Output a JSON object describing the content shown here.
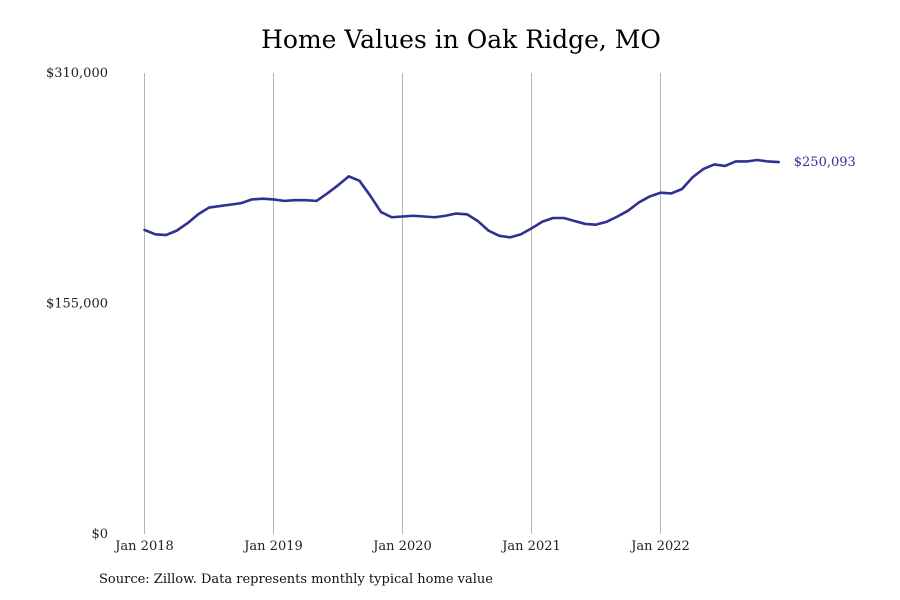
{
  "chart_data": {
    "type": "line",
    "title": "Home Values in Oak Ridge, MO",
    "source_note": "Source: Zillow. Data represents monthly typical home value",
    "xlabel": "",
    "ylabel": "",
    "x_start": "2018-01",
    "x_ticks": [
      "Jan 2018",
      "Jan 2019",
      "Jan 2020",
      "Jan 2021",
      "Jan 2022"
    ],
    "y_ticks": [
      "$0",
      "$155,000",
      "$310,000"
    ],
    "ylim": [
      0,
      310000
    ],
    "grid": "vertical at x ticks",
    "legend": "none",
    "end_label": "$250,093",
    "colors": {
      "line": "#2e3192",
      "grid": "#b3b3b3"
    },
    "series": [
      {
        "x": [
          "2018-01",
          "2018-02",
          "2018-03",
          "2018-04",
          "2018-05",
          "2018-06",
          "2018-07",
          "2018-08",
          "2018-09",
          "2018-10",
          "2018-11",
          "2018-12",
          "2019-01",
          "2019-02",
          "2019-03",
          "2019-04",
          "2019-05",
          "2019-06",
          "2019-07",
          "2019-08",
          "2019-09",
          "2019-10",
          "2019-11",
          "2019-12",
          "2020-01",
          "2020-02",
          "2020-03",
          "2020-04",
          "2020-05",
          "2020-06",
          "2020-07",
          "2020-08",
          "2020-09",
          "2020-10",
          "2020-11",
          "2020-12",
          "2021-01",
          "2021-02",
          "2021-03",
          "2021-04",
          "2021-05",
          "2021-06",
          "2021-07",
          "2021-08",
          "2021-09",
          "2021-10",
          "2021-11",
          "2021-12",
          "2022-01",
          "2022-02",
          "2022-03",
          "2022-04",
          "2022-05",
          "2022-06",
          "2022-07",
          "2022-08",
          "2022-09",
          "2022-10",
          "2022-11",
          "2022-12"
        ],
        "values": [
          204500,
          201500,
          201000,
          204000,
          209000,
          215000,
          219500,
          220500,
          221500,
          222500,
          225000,
          225500,
          225000,
          224000,
          224500,
          224500,
          224000,
          229000,
          234500,
          240500,
          237500,
          227500,
          216500,
          213000,
          213500,
          214000,
          213500,
          213000,
          214000,
          215500,
          215000,
          210500,
          204000,
          200500,
          199500,
          201500,
          205500,
          210000,
          212500,
          212500,
          210500,
          208500,
          208000,
          210000,
          213500,
          217500,
          223000,
          227000,
          229500,
          229000,
          232000,
          240000,
          245500,
          248500,
          247500,
          250500,
          250500,
          251500,
          250500,
          250093
        ]
      }
    ]
  }
}
